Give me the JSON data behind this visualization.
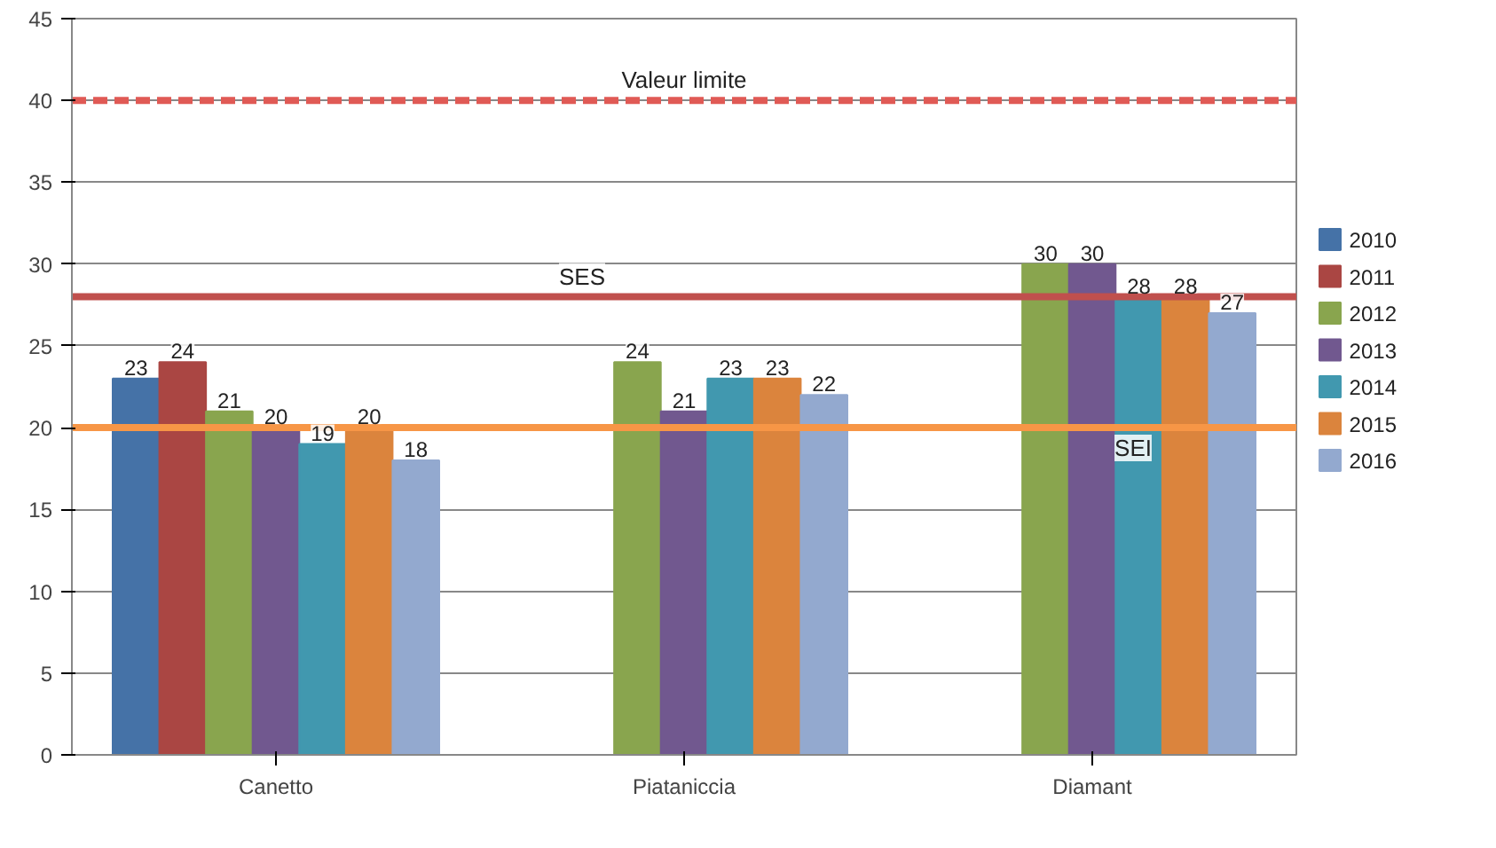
{
  "chart_data": {
    "type": "bar",
    "categories": [
      "Canetto",
      "Piataniccia",
      "Diamant"
    ],
    "series": [
      {
        "name": "2010",
        "color": "#4572a7",
        "values": [
          23,
          null,
          null
        ]
      },
      {
        "name": "2011",
        "color": "#aa4643",
        "values": [
          24,
          null,
          null
        ]
      },
      {
        "name": "2012",
        "color": "#89a54e",
        "values": [
          21,
          24,
          30
        ]
      },
      {
        "name": "2013",
        "color": "#71588f",
        "values": [
          20,
          21,
          30
        ]
      },
      {
        "name": "2014",
        "color": "#4198af",
        "values": [
          19,
          23,
          28
        ]
      },
      {
        "name": "2015",
        "color": "#db843d",
        "values": [
          20,
          23,
          28
        ]
      },
      {
        "name": "2016",
        "color": "#93a9cf",
        "values": [
          18,
          22,
          27
        ]
      }
    ],
    "ref_lines": [
      {
        "axis": "y",
        "value": 40,
        "label": "Valeur limite",
        "color": "#e05a55",
        "line_style": "dashed"
      },
      {
        "axis": "y",
        "value": 28,
        "label": "SES",
        "color": "#c0504d",
        "line_style": "solid"
      },
      {
        "axis": "y",
        "value": 20,
        "label": "SEI",
        "color": "#f79646",
        "line_style": "solid"
      }
    ],
    "ylim": [
      0,
      45
    ],
    "yticks": [
      0,
      5,
      10,
      15,
      20,
      25,
      30,
      35,
      40,
      45
    ],
    "grid": "y",
    "legend": "right",
    "data_labels": true
  }
}
